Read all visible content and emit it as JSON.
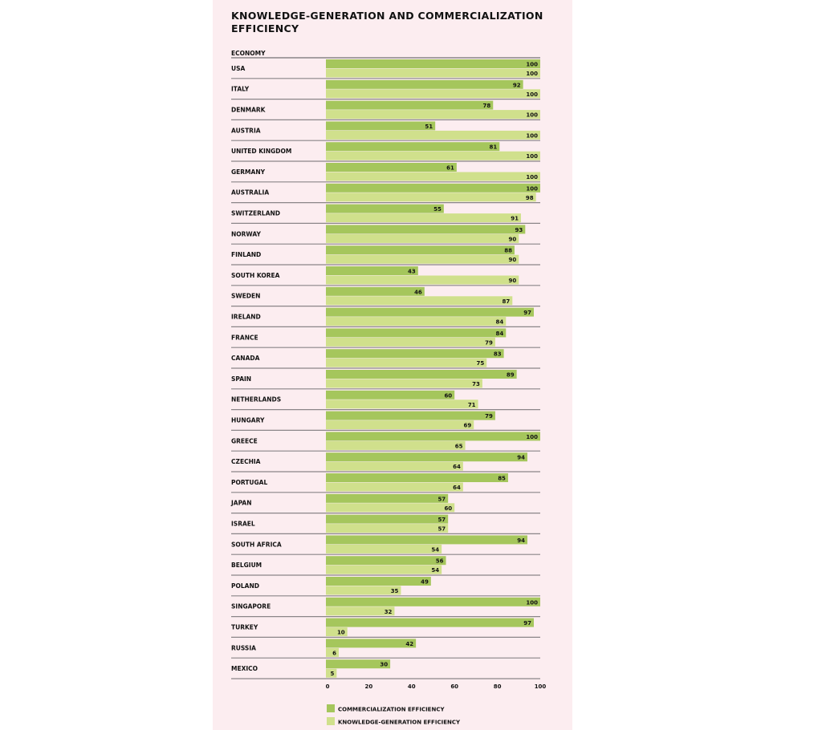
{
  "chart_data": {
    "type": "bar",
    "orientation": "horizontal",
    "title": "KNOWLEDGE-GENERATION AND COMMERCIALIZATION EFFICIENCY",
    "category_header": "ECONOMY",
    "categories": [
      "USA",
      "ITALY",
      "DENMARK",
      "AUSTRIA",
      "UNITED KINGDOM",
      "GERMANY",
      "AUSTRALIA",
      "SWITZERLAND",
      "NORWAY",
      "FINLAND",
      "SOUTH KOREA",
      "SWEDEN",
      "IRELAND",
      "FRANCE",
      "CANADA",
      "SPAIN",
      "NETHERLANDS",
      "HUNGARY",
      "GREECE",
      "CZECHIA",
      "PORTUGAL",
      "JAPAN",
      "ISRAEL",
      "SOUTH AFRICA",
      "BELGIUM",
      "POLAND",
      "SINGAPORE",
      "TURKEY",
      "RUSSIA",
      "MEXICO"
    ],
    "series": [
      {
        "name": "COMMERCIALIZATION EFFICIENCY",
        "color": "#a5c65c",
        "values": [
          100,
          92,
          78,
          51,
          81,
          61,
          100,
          55,
          93,
          88,
          43,
          46,
          97,
          84,
          83,
          89,
          60,
          79,
          100,
          94,
          85,
          57,
          57,
          94,
          56,
          49,
          100,
          97,
          42,
          30
        ]
      },
      {
        "name": "KNOWLEDGE-GENERATION EFFICIENCY",
        "color": "#d0e08c",
        "values": [
          100,
          100,
          100,
          100,
          100,
          100,
          98,
          91,
          90,
          90,
          90,
          87,
          84,
          79,
          75,
          73,
          71,
          69,
          65,
          64,
          64,
          60,
          57,
          54,
          54,
          35,
          32,
          10,
          6,
          5
        ]
      }
    ],
    "xlim": [
      0,
      100
    ],
    "xticks": [
      0,
      20,
      40,
      60,
      80,
      100
    ],
    "grid": false,
    "legend_position": "bottom"
  }
}
